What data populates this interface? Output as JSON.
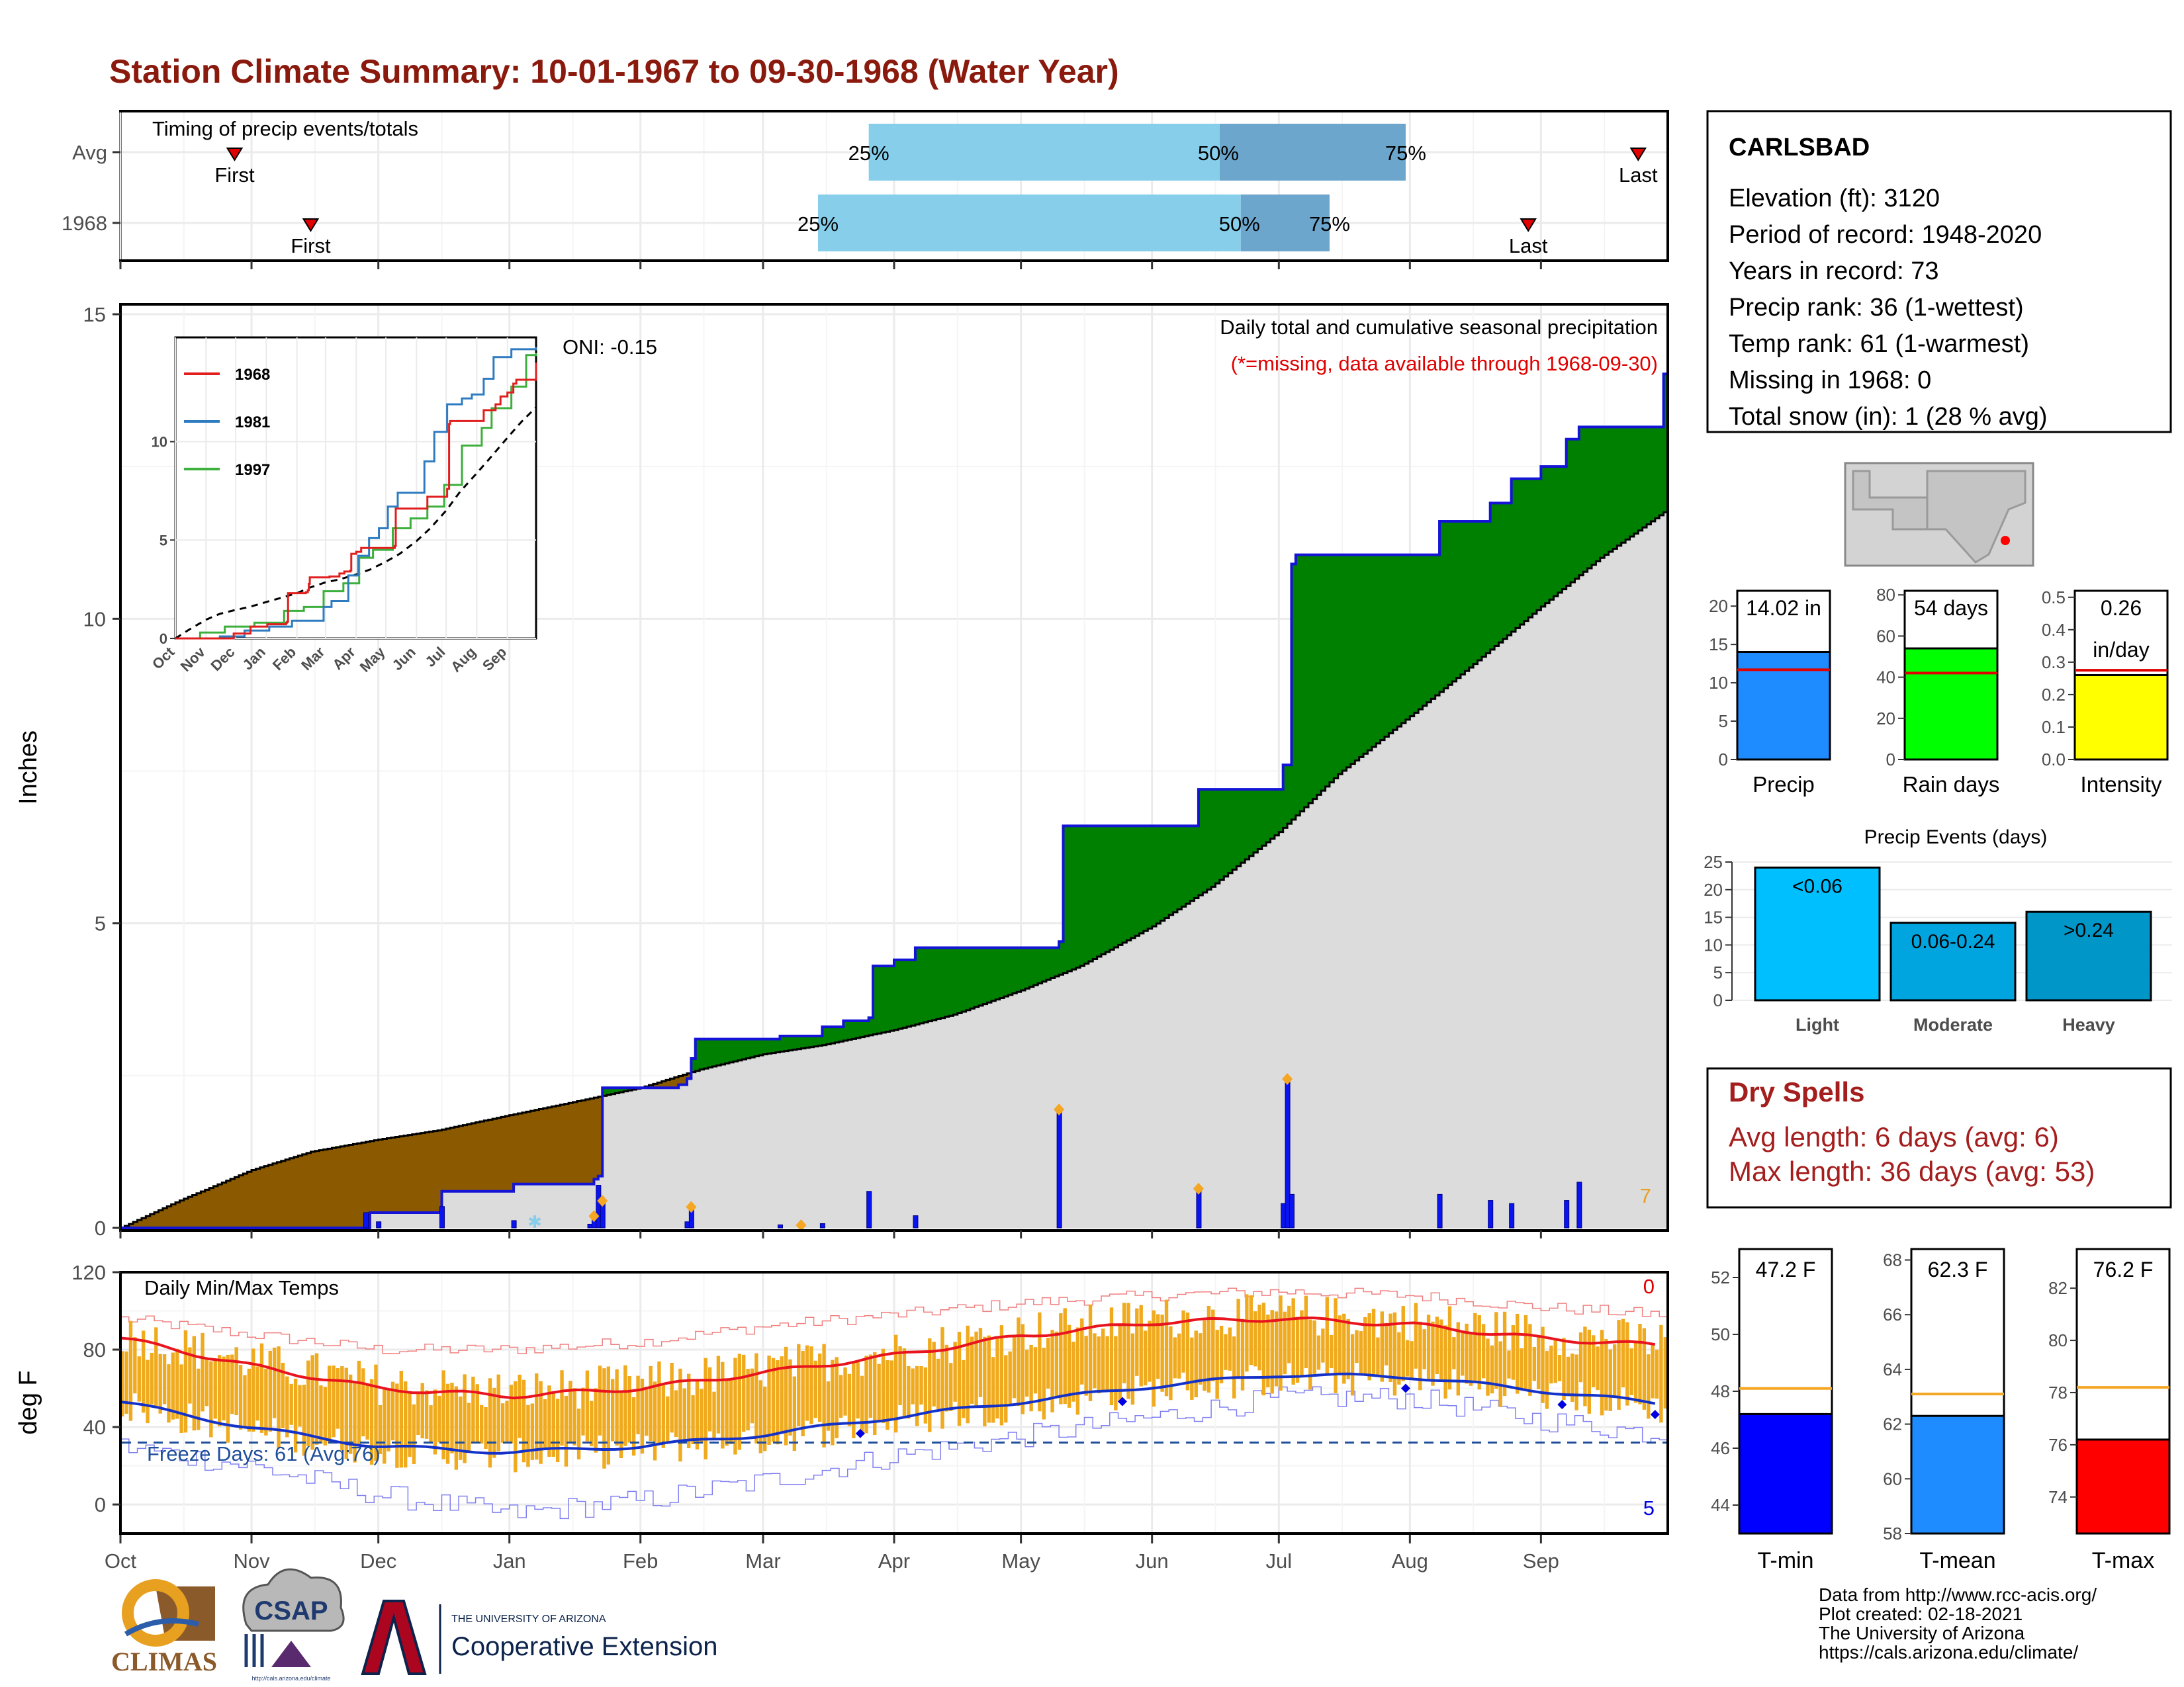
{
  "title": "Station Climate Summary: 10-01-1967 to 09-30-1968 (Water Year)",
  "colors": {
    "title": "#8B1A0E",
    "cum_current_line": "#1414D8",
    "surplus": "#008000",
    "deficit": "#8B5A00",
    "avg_fill": "#DCDCDC",
    "daily_bar": "#0A14F0",
    "tmax": "#E8141E",
    "tmin": "#1432C8",
    "range": "#F0AA1E",
    "dry_spells": "#A51E1E",
    "q_light": "#87CEEB",
    "q_dark": "#6CA6CD",
    "freeze": "#1F4E9A"
  },
  "timing_panel": {
    "label": "Timing of precip events/totals",
    "rows": [
      {
        "name": "Avg",
        "first_label": "First",
        "last_label": "Last",
        "first": "1967-10-28",
        "last": "1968-09-24",
        "q25": "1968-03-26",
        "q50": "1968-06-17",
        "q75": "1968-07-31"
      },
      {
        "name": "1968",
        "first_label": "First",
        "last_label": "Last",
        "first": "1967-11-15",
        "last": "1968-08-29",
        "q25": "1968-03-14",
        "q50": "1968-06-22",
        "q75": "1968-07-13"
      }
    ],
    "q_labels": [
      "25%",
      "50%",
      "75%"
    ]
  },
  "precip_panel": {
    "title": "Daily total and cumulative seasonal precipitation",
    "note": "(*=missing, data available through 1968-09-30)",
    "oni": "ONI: -0.15",
    "ylabel": "Inches",
    "yticks": [
      "0",
      "5",
      "10",
      "15"
    ],
    "ylim": [
      0,
      15
    ],
    "corner_count": "7",
    "inset": {
      "legend": [
        "1968",
        "1981",
        "1997"
      ],
      "yticks": [
        "0",
        "5",
        "10"
      ],
      "xticks": [
        "Oct",
        "Nov",
        "Dec",
        "Jan",
        "Feb",
        "Mar",
        "Apr",
        "May",
        "Jun",
        "Jul",
        "Aug",
        "Sep"
      ]
    }
  },
  "chart_data": {
    "type": "area",
    "months": [
      "Oct",
      "Nov",
      "Dec",
      "Jan",
      "Feb",
      "Mar",
      "Apr",
      "May",
      "Jun",
      "Jul",
      "Aug",
      "Sep"
    ],
    "cumulative_1968": [
      [
        "1967-10-01",
        0
      ],
      [
        "1967-11-28",
        0
      ],
      [
        "1967-11-29",
        0.25
      ],
      [
        "1967-12-15",
        0.25
      ],
      [
        "1967-12-16",
        0.6
      ],
      [
        "1968-01-01",
        0.6
      ],
      [
        "1968-01-02",
        0.72
      ],
      [
        "1968-01-20",
        0.72
      ],
      [
        "1968-01-21",
        0.8
      ],
      [
        "1968-01-22",
        0.85
      ],
      [
        "1968-01-23",
        2.3
      ],
      [
        "1968-02-10",
        2.35
      ],
      [
        "1968-02-12",
        2.45
      ],
      [
        "1968-02-13",
        2.78
      ],
      [
        "1968-02-14",
        3.1
      ],
      [
        "1968-03-05",
        3.15
      ],
      [
        "1968-03-15",
        3.3
      ],
      [
        "1968-03-20",
        3.4
      ],
      [
        "1968-03-26",
        3.45
      ],
      [
        "1968-03-27",
        4.3
      ],
      [
        "1968-04-01",
        4.4
      ],
      [
        "1968-04-06",
        4.6
      ],
      [
        "1968-05-10",
        4.7
      ],
      [
        "1968-05-11",
        6.6
      ],
      [
        "1968-06-11",
        6.6
      ],
      [
        "1968-06-12",
        7.2
      ],
      [
        "1968-07-01",
        7.2
      ],
      [
        "1968-07-02",
        7.6
      ],
      [
        "1968-07-04",
        10.9
      ],
      [
        "1968-07-05",
        11.05
      ],
      [
        "1968-08-06",
        11.05
      ],
      [
        "1968-08-08",
        11.6
      ],
      [
        "1968-08-20",
        11.9
      ],
      [
        "1968-08-25",
        12.3
      ],
      [
        "1968-09-01",
        12.5
      ],
      [
        "1968-09-07",
        12.95
      ],
      [
        "1968-09-10",
        13.15
      ],
      [
        "1968-09-30",
        14.02
      ]
    ],
    "cumulative_avg": [
      [
        "1967-10-01",
        0
      ],
      [
        "1967-10-15",
        0.45
      ],
      [
        "1967-11-01",
        0.95
      ],
      [
        "1967-11-15",
        1.25
      ],
      [
        "1967-12-01",
        1.45
      ],
      [
        "1967-12-15",
        1.6
      ],
      [
        "1968-01-01",
        1.85
      ],
      [
        "1968-01-15",
        2.05
      ],
      [
        "1968-02-01",
        2.3
      ],
      [
        "1968-02-15",
        2.6
      ],
      [
        "1968-03-01",
        2.85
      ],
      [
        "1968-03-15",
        3.0
      ],
      [
        "1968-04-01",
        3.25
      ],
      [
        "1968-04-15",
        3.5
      ],
      [
        "1968-05-01",
        3.9
      ],
      [
        "1968-05-15",
        4.3
      ],
      [
        "1968-06-01",
        4.95
      ],
      [
        "1968-06-15",
        5.6
      ],
      [
        "1968-07-01",
        6.5
      ],
      [
        "1968-07-15",
        7.45
      ],
      [
        "1968-08-01",
        8.4
      ],
      [
        "1968-08-15",
        9.2
      ],
      [
        "1968-09-01",
        10.2
      ],
      [
        "1968-09-15",
        11.0
      ],
      [
        "1968-09-30",
        11.75
      ]
    ],
    "daily_precip": [
      [
        "1967-11-28",
        0.25
      ],
      [
        "1967-12-01",
        0.1
      ],
      [
        "1967-12-16",
        0.35
      ],
      [
        "1968-01-02",
        0.12
      ],
      [
        "1968-01-20",
        0.06
      ],
      [
        "1968-01-21",
        0.15
      ],
      [
        "1968-01-22",
        0.7
      ],
      [
        "1968-01-23",
        0.4
      ],
      [
        "1968-02-12",
        0.1
      ],
      [
        "1968-02-13",
        0.3
      ],
      [
        "1968-03-05",
        0.05
      ],
      [
        "1968-03-15",
        0.07
      ],
      [
        "1968-03-26",
        0.6
      ],
      [
        "1968-04-06",
        0.2
      ],
      [
        "1968-05-10",
        1.9
      ],
      [
        "1968-06-12",
        0.6
      ],
      [
        "1968-07-02",
        0.4
      ],
      [
        "1968-07-03",
        2.4
      ],
      [
        "1968-07-04",
        0.55
      ],
      [
        "1968-08-08",
        0.55
      ],
      [
        "1968-08-20",
        0.45
      ],
      [
        "1968-08-25",
        0.4
      ],
      [
        "1968-09-07",
        0.45
      ],
      [
        "1968-09-10",
        0.75
      ]
    ],
    "heavy_markers": [
      "1968-01-21",
      "1968-01-23",
      "1968-02-13",
      "1968-03-10",
      "1968-05-10",
      "1968-06-12",
      "1968-07-03"
    ],
    "snow_marker": "1968-01-07"
  },
  "temp_panel": {
    "label": "Daily Min/Max Temps",
    "ylabel": "deg F",
    "yticks": [
      "0",
      "40",
      "80",
      "120"
    ],
    "ylim": [
      -15,
      120
    ],
    "freeze_label": "Freeze Days: 61 (Avg:76)",
    "freeze_line": 32,
    "count_top": "0",
    "count_bottom": "5",
    "avg_tmax": [
      [
        0,
        86
      ],
      [
        30,
        72
      ],
      [
        61,
        60
      ],
      [
        92,
        56
      ],
      [
        123,
        60
      ],
      [
        152,
        68
      ],
      [
        183,
        77
      ],
      [
        213,
        87
      ],
      [
        244,
        94
      ],
      [
        274,
        96
      ],
      [
        305,
        93
      ],
      [
        335,
        86
      ],
      [
        365,
        82
      ]
    ],
    "avg_tmin": [
      [
        0,
        53
      ],
      [
        30,
        40
      ],
      [
        61,
        30
      ],
      [
        92,
        27
      ],
      [
        123,
        30
      ],
      [
        152,
        36
      ],
      [
        183,
        45
      ],
      [
        213,
        53
      ],
      [
        244,
        61
      ],
      [
        274,
        67
      ],
      [
        305,
        66
      ],
      [
        335,
        59
      ],
      [
        365,
        52
      ]
    ],
    "record_high": [
      [
        0,
        96
      ],
      [
        30,
        88
      ],
      [
        61,
        80
      ],
      [
        92,
        80
      ],
      [
        123,
        84
      ],
      [
        152,
        92
      ],
      [
        183,
        98
      ],
      [
        213,
        104
      ],
      [
        244,
        108
      ],
      [
        274,
        110
      ],
      [
        305,
        108
      ],
      [
        335,
        102
      ],
      [
        365,
        98
      ]
    ],
    "record_low": [
      [
        0,
        30
      ],
      [
        30,
        20
      ],
      [
        61,
        5
      ],
      [
        92,
        -5
      ],
      [
        123,
        2
      ],
      [
        152,
        12
      ],
      [
        183,
        25
      ],
      [
        213,
        35
      ],
      [
        244,
        45
      ],
      [
        274,
        55
      ],
      [
        305,
        55
      ],
      [
        335,
        44
      ],
      [
        365,
        36
      ]
    ]
  },
  "station": {
    "name": "CARLSBAD",
    "lines": [
      "Elevation (ft): 3120",
      "Period of record: 1948-2020",
      "Years in record: 73",
      "Precip rank: 36 (1-wettest)",
      "Temp rank: 61 (1-warmest)",
      "Missing in 1968: 0",
      "Total snow (in): 1 (28 % avg)"
    ]
  },
  "mini_bars": [
    {
      "label": "Precip",
      "value_label": "14.02 in",
      "value": 14.02,
      "avg": 11.7,
      "ymax": 22,
      "ticks": [
        "0",
        "5",
        "10",
        "15",
        "20"
      ],
      "tickvals": [
        0,
        5,
        10,
        15,
        20
      ],
      "color": "#1E8CFF"
    },
    {
      "label": "Rain days",
      "value_label": "54 days",
      "value": 54,
      "avg": 42,
      "ymax": 82,
      "ticks": [
        "0",
        "20",
        "40",
        "60",
        "80"
      ],
      "tickvals": [
        0,
        20,
        40,
        60,
        80
      ],
      "color": "#00FF00"
    },
    {
      "label": "Intensity",
      "value_label": "0.26",
      "value_label2": "in/day",
      "value": 0.26,
      "avg": 0.275,
      "ymax": 0.52,
      "ticks": [
        "0.0",
        "0.1",
        "0.2",
        "0.3",
        "0.4",
        "0.5"
      ],
      "tickvals": [
        0,
        0.1,
        0.2,
        0.3,
        0.4,
        0.5
      ],
      "color": "#FFFF00"
    }
  ],
  "precip_events": {
    "title": "Precip Events (days)",
    "ymax": 25,
    "ticks": [
      "0",
      "5",
      "10",
      "15",
      "20",
      "25"
    ],
    "tickvals": [
      0,
      5,
      10,
      15,
      20,
      25
    ],
    "bars": [
      {
        "label": "Light",
        "inside": "<0.06",
        "value": 24,
        "color": "#00BFFF"
      },
      {
        "label": "Moderate",
        "inside": "0.06-0.24",
        "value": 14,
        "color": "#00A5E0"
      },
      {
        "label": "Heavy",
        "inside": ">0.24",
        "value": 16,
        "color": "#0096C8"
      }
    ]
  },
  "dry_spells": {
    "title": "Dry Spells",
    "avg_line": "Avg length: 6 days (avg: 6)",
    "max_line": "Max length: 36 days (avg: 53)"
  },
  "temp_bars": [
    {
      "label": "T-min",
      "value_label": "47.2 F",
      "value": 47.2,
      "avg": 48.1,
      "ymin": 43,
      "ymax": 53,
      "ticks": [
        "44",
        "46",
        "48",
        "50",
        "52"
      ],
      "tickvals": [
        44,
        46,
        48,
        50,
        52
      ],
      "color": "#0000FF"
    },
    {
      "label": "T-mean",
      "value_label": "62.3 F",
      "value": 62.3,
      "avg": 63.1,
      "ymin": 58,
      "ymax": 68.4,
      "ticks": [
        "58",
        "60",
        "62",
        "64",
        "66",
        "68"
      ],
      "tickvals": [
        58,
        60,
        62,
        64,
        66,
        68
      ],
      "color": "#1E8CFF"
    },
    {
      "label": "T-max",
      "value_label": "76.2 F",
      "value": 76.2,
      "avg": 78.2,
      "ymin": 72.6,
      "ymax": 83.5,
      "ticks": [
        "74",
        "76",
        "78",
        "80",
        "82"
      ],
      "tickvals": [
        74,
        76,
        78,
        80,
        82
      ],
      "color": "#FF0000"
    }
  ],
  "footer": {
    "lines": [
      "Data from http://www.rcc-acis.org/",
      "Plot created: 02-18-2021",
      "The University of Arizona",
      "https://cals.arizona.edu/climate/"
    ],
    "logos": {
      "climas": "CLIMAS",
      "csap": "CSAP",
      "csap_url": "http://cals.arizona.edu/climate",
      "ua_small": "THE UNIVERSITY OF ARIZONA",
      "ua_big": "Cooperative Extension"
    }
  }
}
